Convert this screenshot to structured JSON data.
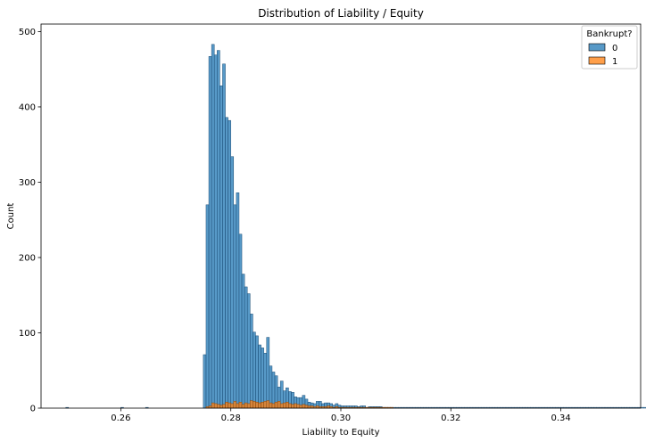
{
  "chart_data": {
    "type": "bar",
    "title": "Distribution of Liability / Equity",
    "xlabel": "Liability to Equity",
    "ylabel": "Count",
    "xlim": [
      0.2455,
      0.3545
    ],
    "ylim": [
      0,
      510
    ],
    "xticks": [
      0.26,
      0.28,
      0.3,
      0.32,
      0.34
    ],
    "xtick_labels": [
      "0.26",
      "0.28",
      "0.30",
      "0.32",
      "0.34"
    ],
    "yticks": [
      0,
      100,
      200,
      300,
      400,
      500
    ],
    "ytick_labels": [
      "0",
      "100",
      "200",
      "300",
      "400",
      "500"
    ],
    "grid": false,
    "legend_position": "top-right",
    "legend_title": "Bankrupt?",
    "bin_start": 0.25,
    "bin_width": 0.0005,
    "colors": {
      "0": "#1f77b4",
      "1": "#ff7f0e"
    },
    "series": [
      {
        "name": "0",
        "values": [
          1,
          0,
          0,
          0,
          0,
          0,
          0,
          0,
          0,
          0,
          0,
          0,
          0,
          0,
          0,
          0,
          0,
          0,
          0,
          0,
          1,
          0,
          0,
          0,
          0,
          0,
          0,
          0,
          0,
          1,
          0,
          0,
          0,
          0,
          0,
          0,
          0,
          0,
          0,
          0,
          0,
          0,
          0,
          0,
          0,
          0,
          0,
          0,
          0,
          0,
          71,
          270,
          467,
          483,
          469,
          475,
          428,
          457,
          386,
          382,
          334,
          270,
          286,
          231,
          178,
          161,
          152,
          125,
          101,
          96,
          84,
          80,
          73,
          94,
          56,
          48,
          43,
          28,
          36,
          23,
          27,
          22,
          21,
          15,
          14,
          14,
          17,
          12,
          8,
          7,
          6,
          9,
          9,
          6,
          7,
          7,
          6,
          4,
          6,
          4,
          3,
          3,
          3,
          3,
          3,
          3,
          2,
          3,
          3,
          1,
          2,
          2,
          2,
          2,
          2,
          1,
          1,
          1,
          1,
          1,
          1,
          1,
          1,
          1,
          1,
          1,
          1,
          1,
          1,
          1,
          1,
          1,
          1,
          1,
          1,
          1,
          1,
          1,
          1,
          1,
          1,
          1,
          1,
          1,
          1,
          1,
          1,
          1,
          1,
          1,
          1,
          1,
          1,
          1,
          1,
          1,
          1,
          1,
          1,
          1,
          1,
          1,
          1,
          1,
          1,
          1,
          1,
          1,
          1,
          1,
          1,
          1,
          1,
          1,
          1,
          1,
          1,
          1,
          1,
          1,
          1,
          1,
          1,
          1,
          1,
          1,
          1,
          1,
          1,
          1,
          1,
          1,
          1,
          1,
          1,
          1,
          1,
          1,
          1,
          1,
          1,
          1,
          1,
          1,
          1,
          1,
          1,
          1,
          1,
          1,
          1,
          1,
          1,
          1,
          1,
          1,
          1,
          1,
          1,
          1,
          1
        ]
      },
      {
        "name": "1",
        "values": [
          0,
          0,
          0,
          0,
          0,
          0,
          0,
          0,
          0,
          0,
          0,
          0,
          0,
          0,
          0,
          0,
          0,
          0,
          0,
          0,
          0,
          0,
          0,
          0,
          0,
          0,
          0,
          0,
          0,
          0,
          0,
          0,
          0,
          0,
          0,
          0,
          0,
          0,
          0,
          0,
          0,
          0,
          0,
          0,
          0,
          0,
          0,
          0,
          0,
          0,
          0,
          2,
          3,
          7,
          6,
          5,
          4,
          5,
          8,
          7,
          6,
          9,
          6,
          8,
          5,
          7,
          6,
          10,
          9,
          8,
          7,
          8,
          9,
          10,
          7,
          6,
          8,
          9,
          6,
          7,
          8,
          6,
          5,
          6,
          5,
          4,
          5,
          4,
          3,
          3,
          2,
          3,
          2,
          2,
          2,
          3,
          2,
          1,
          2,
          1,
          1,
          1,
          1,
          1,
          1,
          1,
          1,
          1,
          1,
          1,
          1,
          1,
          1,
          1,
          1,
          1,
          1,
          1,
          1,
          0,
          0,
          0,
          0,
          0,
          0,
          0,
          0,
          0,
          0,
          0,
          0,
          0,
          0,
          0,
          0,
          0,
          0,
          0,
          0,
          0,
          0,
          0,
          0,
          0,
          0,
          0,
          0,
          0,
          0,
          0,
          0,
          0,
          0,
          0,
          0,
          0,
          0,
          0,
          0,
          0,
          0,
          0,
          0,
          0,
          0,
          0,
          0,
          0,
          0,
          0,
          0,
          0,
          0,
          0,
          0,
          0,
          0,
          0,
          0,
          0,
          0,
          0,
          0,
          0,
          0,
          0,
          0,
          0,
          0,
          0,
          0,
          0,
          0,
          0,
          0,
          0,
          0,
          0,
          0,
          0,
          0,
          0,
          0,
          0,
          0,
          0,
          0,
          0,
          0,
          0,
          0,
          0,
          0,
          0,
          0,
          0,
          0,
          0,
          0,
          0
        ]
      }
    ]
  }
}
